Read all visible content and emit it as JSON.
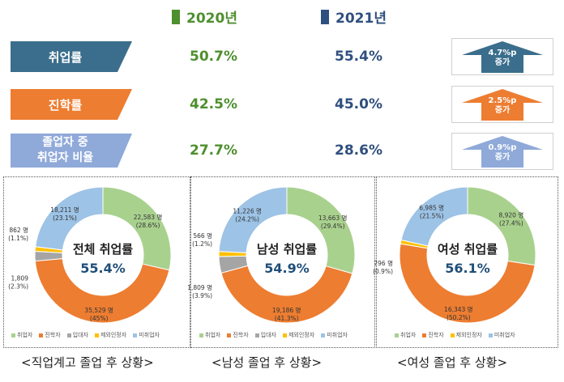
{
  "header": {
    "year1": "2020년",
    "year1_color": "#4e8f2e",
    "year2": "2021년",
    "year2_color": "#2f4f7f"
  },
  "rows": [
    {
      "label": "취업률",
      "v2020": "50.7%",
      "v2021": "55.4%",
      "diff_line1": "4.7%p",
      "diff_line2": "증가",
      "bar_color": "#3b6e8c",
      "arrow_color": "#3b6e8c"
    },
    {
      "label": "진학률",
      "v2020": "42.5%",
      "v2021": "45.0%",
      "diff_line1": "2.5%p",
      "diff_line2": "증가",
      "bar_color": "#ed7d31",
      "arrow_color": "#ed7d31"
    },
    {
      "label_line1": "졸업자 중",
      "label_line2": "취업자 비율",
      "v2020": "27.7%",
      "v2021": "28.6%",
      "diff_line1": "0.9%p",
      "diff_line2": "증가",
      "bar_color": "#8fa9d9",
      "arrow_color": "#8fa9d9"
    }
  ],
  "chart_data": [
    {
      "type": "pie",
      "title": "전체 취업률",
      "center_value": "55.4%",
      "categories": [
        "취업자",
        "진학자",
        "입대자",
        "제외인정자",
        "미취업자"
      ],
      "colors": [
        "#a9d18e",
        "#ed7d31",
        "#a5a5a5",
        "#ffc000",
        "#9dc3e6"
      ],
      "values": [
        22583,
        35529,
        1809,
        862,
        18211
      ],
      "labels": [
        "22,583 명",
        "35,529 명",
        "1,809",
        "862 명",
        "18,211 명"
      ],
      "pcts": [
        "(28.6%)",
        "(45%)",
        "(2.3%)",
        "(1.1%)",
        "(23.1%)"
      ],
      "caption": "<직업계고 졸업 후 상황>"
    },
    {
      "type": "pie",
      "title": "남성 취업률",
      "center_value": "54.9%",
      "categories": [
        "취업자",
        "진학자",
        "입대자",
        "제외인정자",
        "미취업자"
      ],
      "colors": [
        "#a9d18e",
        "#ed7d31",
        "#a5a5a5",
        "#ffc000",
        "#9dc3e6"
      ],
      "values": [
        13663,
        19186,
        1809,
        566,
        11226
      ],
      "labels": [
        "13,663 명",
        "19,186 명",
        "1,809 명",
        "566 명",
        "11,226 명"
      ],
      "pcts": [
        "(29.4%)",
        "(41.3%)",
        "(3.9%)",
        "(1.2%)",
        "(24.2%)"
      ],
      "caption": "<남성 졸업 후 상황>"
    },
    {
      "type": "pie",
      "title": "여성 취업률",
      "center_value": "56.1%",
      "categories": [
        "취업자",
        "진학자",
        "제외인정자",
        "미취업자"
      ],
      "colors": [
        "#a9d18e",
        "#ed7d31",
        "#ffc000",
        "#9dc3e6"
      ],
      "values": [
        8920,
        16343,
        296,
        6985
      ],
      "labels": [
        "8,920 명",
        "16,343 명",
        "296 명",
        "6,985 명"
      ],
      "pcts": [
        "(27.4%)",
        "(50.2%)",
        "(0.9%)",
        "(21.5%)"
      ],
      "caption": "<여성 졸업 후 상황>"
    }
  ]
}
